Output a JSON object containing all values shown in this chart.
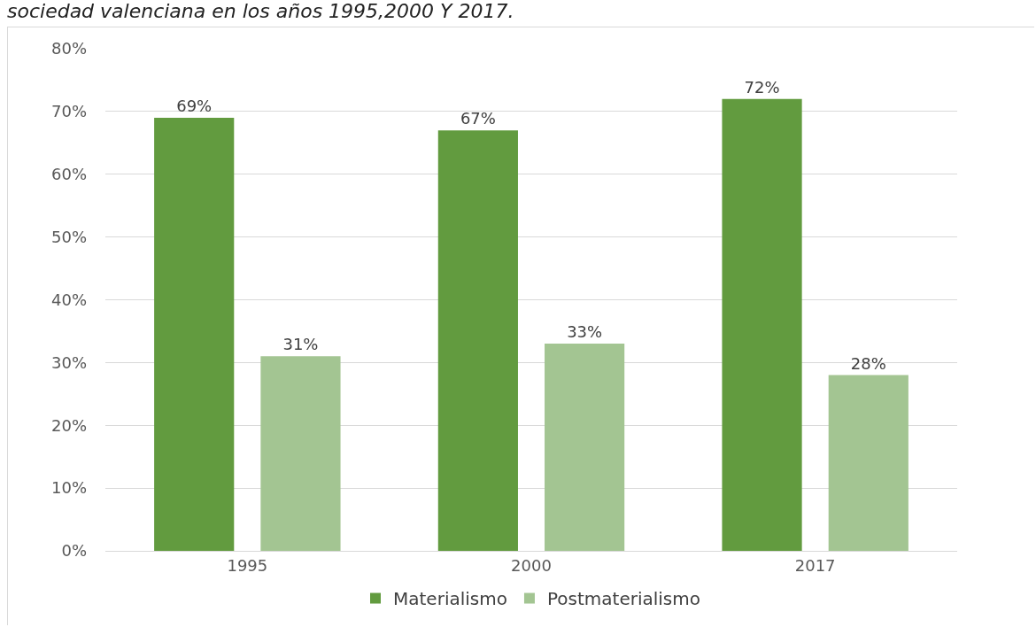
{
  "chart_data": {
    "type": "bar",
    "title": "sociedad valenciana en los años 1995,2000 Y 2017.",
    "categories": [
      "1995",
      "2000",
      "2017"
    ],
    "series": [
      {
        "name": "Materialismo",
        "color": "#629b3f",
        "values": [
          0.69,
          0.67,
          0.72
        ]
      },
      {
        "name": "Postmaterialismo",
        "color": "#a3c592",
        "values": [
          0.31,
          0.33,
          0.28
        ]
      }
    ],
    "ylim": [
      0,
      0.8
    ],
    "yticks": [
      {
        "value": 0,
        "label": "0%"
      },
      {
        "value": 0.1,
        "label": "10%"
      },
      {
        "value": 0.2,
        "label": "20%"
      },
      {
        "value": 0.3,
        "label": "30%"
      },
      {
        "value": 0.4,
        "label": "40%"
      },
      {
        "value": 0.5,
        "label": "50%"
      },
      {
        "value": 0.6,
        "label": "60%"
      },
      {
        "value": 0.7,
        "label": "70%"
      },
      {
        "value": 0.8,
        "label": "80%"
      }
    ],
    "value_labels": [
      [
        "69%",
        "67%",
        "72%"
      ],
      [
        "31%",
        "33%",
        "28%"
      ]
    ],
    "grid": "y",
    "legend": "bottom"
  }
}
